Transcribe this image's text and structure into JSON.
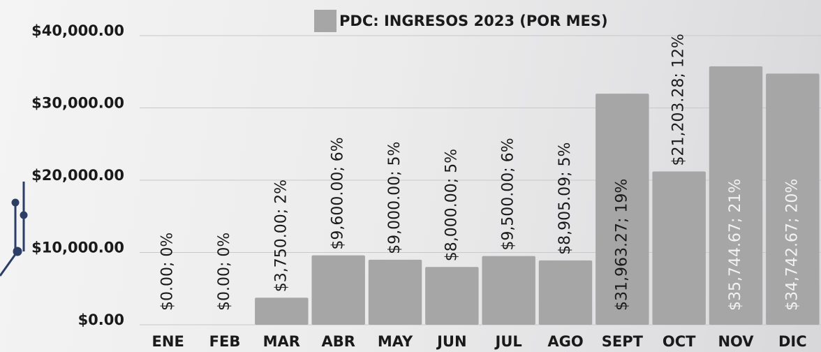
{
  "chart_data": {
    "type": "bar",
    "title": "PDC: INGRESOS 2023 (POR MES)",
    "categories": [
      "ENE",
      "FEB",
      "MAR",
      "ABR",
      "MAY",
      "JUN",
      "JUL",
      "AGO",
      "SEPT",
      "OCT",
      "NOV",
      "DIC"
    ],
    "values": [
      0,
      0,
      3750,
      9600,
      9000,
      8000,
      9500,
      8905.09,
      31963.27,
      21203.28,
      35744.67,
      34742.67
    ],
    "value_labels": [
      "$0.00; 0%",
      "$0.00; 0%",
      "$3,750.00; 2%",
      "$9,600.00; 6%",
      "$9,000.00; 5%",
      "$8,000.00; 5%",
      "$9,500.00; 6%",
      "$8,905.09; 5%",
      "$31,963.27; 19%",
      "$21,203.28; 12%",
      "$35,744.67; 21%",
      "$34,742.67; 20%"
    ],
    "color": "#a6a6a6",
    "ylim": [
      0,
      40000
    ],
    "yticks": [
      {
        "value": 0,
        "label": "$0.00"
      },
      {
        "value": 10000,
        "label": "$10,000.00"
      },
      {
        "value": 20000,
        "label": "$20,000.00"
      },
      {
        "value": 30000,
        "label": "$30,000.00"
      },
      {
        "value": 40000,
        "label": "$40,000.00"
      }
    ],
    "grid": true
  }
}
